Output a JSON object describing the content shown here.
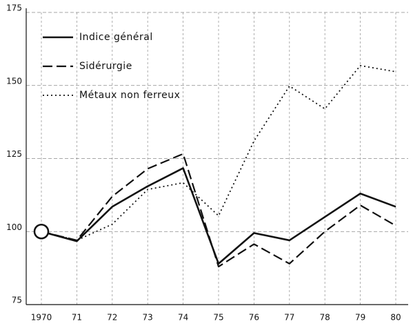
{
  "chart_data": {
    "type": "line",
    "categories": [
      "1970",
      "71",
      "72",
      "73",
      "74",
      "75",
      "76",
      "77",
      "78",
      "79",
      "80"
    ],
    "series": [
      {
        "name": "Indice général",
        "color": "#111111",
        "dash": "solid",
        "values": [
          100,
          96.7,
          108.5,
          115.5,
          121.7,
          89,
          99.5,
          97,
          105,
          113,
          108.5
        ]
      },
      {
        "name": "Sidérurgie",
        "color": "#111111",
        "dash": "dashed",
        "values": [
          100,
          97,
          112,
          121.5,
          126.6,
          88,
          95.7,
          89,
          100,
          109,
          102
        ]
      },
      {
        "name": "Métaux non ferreux",
        "color": "#111111",
        "dash": "dotted",
        "values": [
          100,
          97,
          102.5,
          114.4,
          116.7,
          105.4,
          131,
          149.8,
          142,
          156.8,
          154.7
        ]
      }
    ],
    "ylim": [
      75,
      175
    ],
    "yticks": [
      75,
      100,
      125,
      150,
      175
    ],
    "grid": true,
    "legend": "upper-left"
  }
}
